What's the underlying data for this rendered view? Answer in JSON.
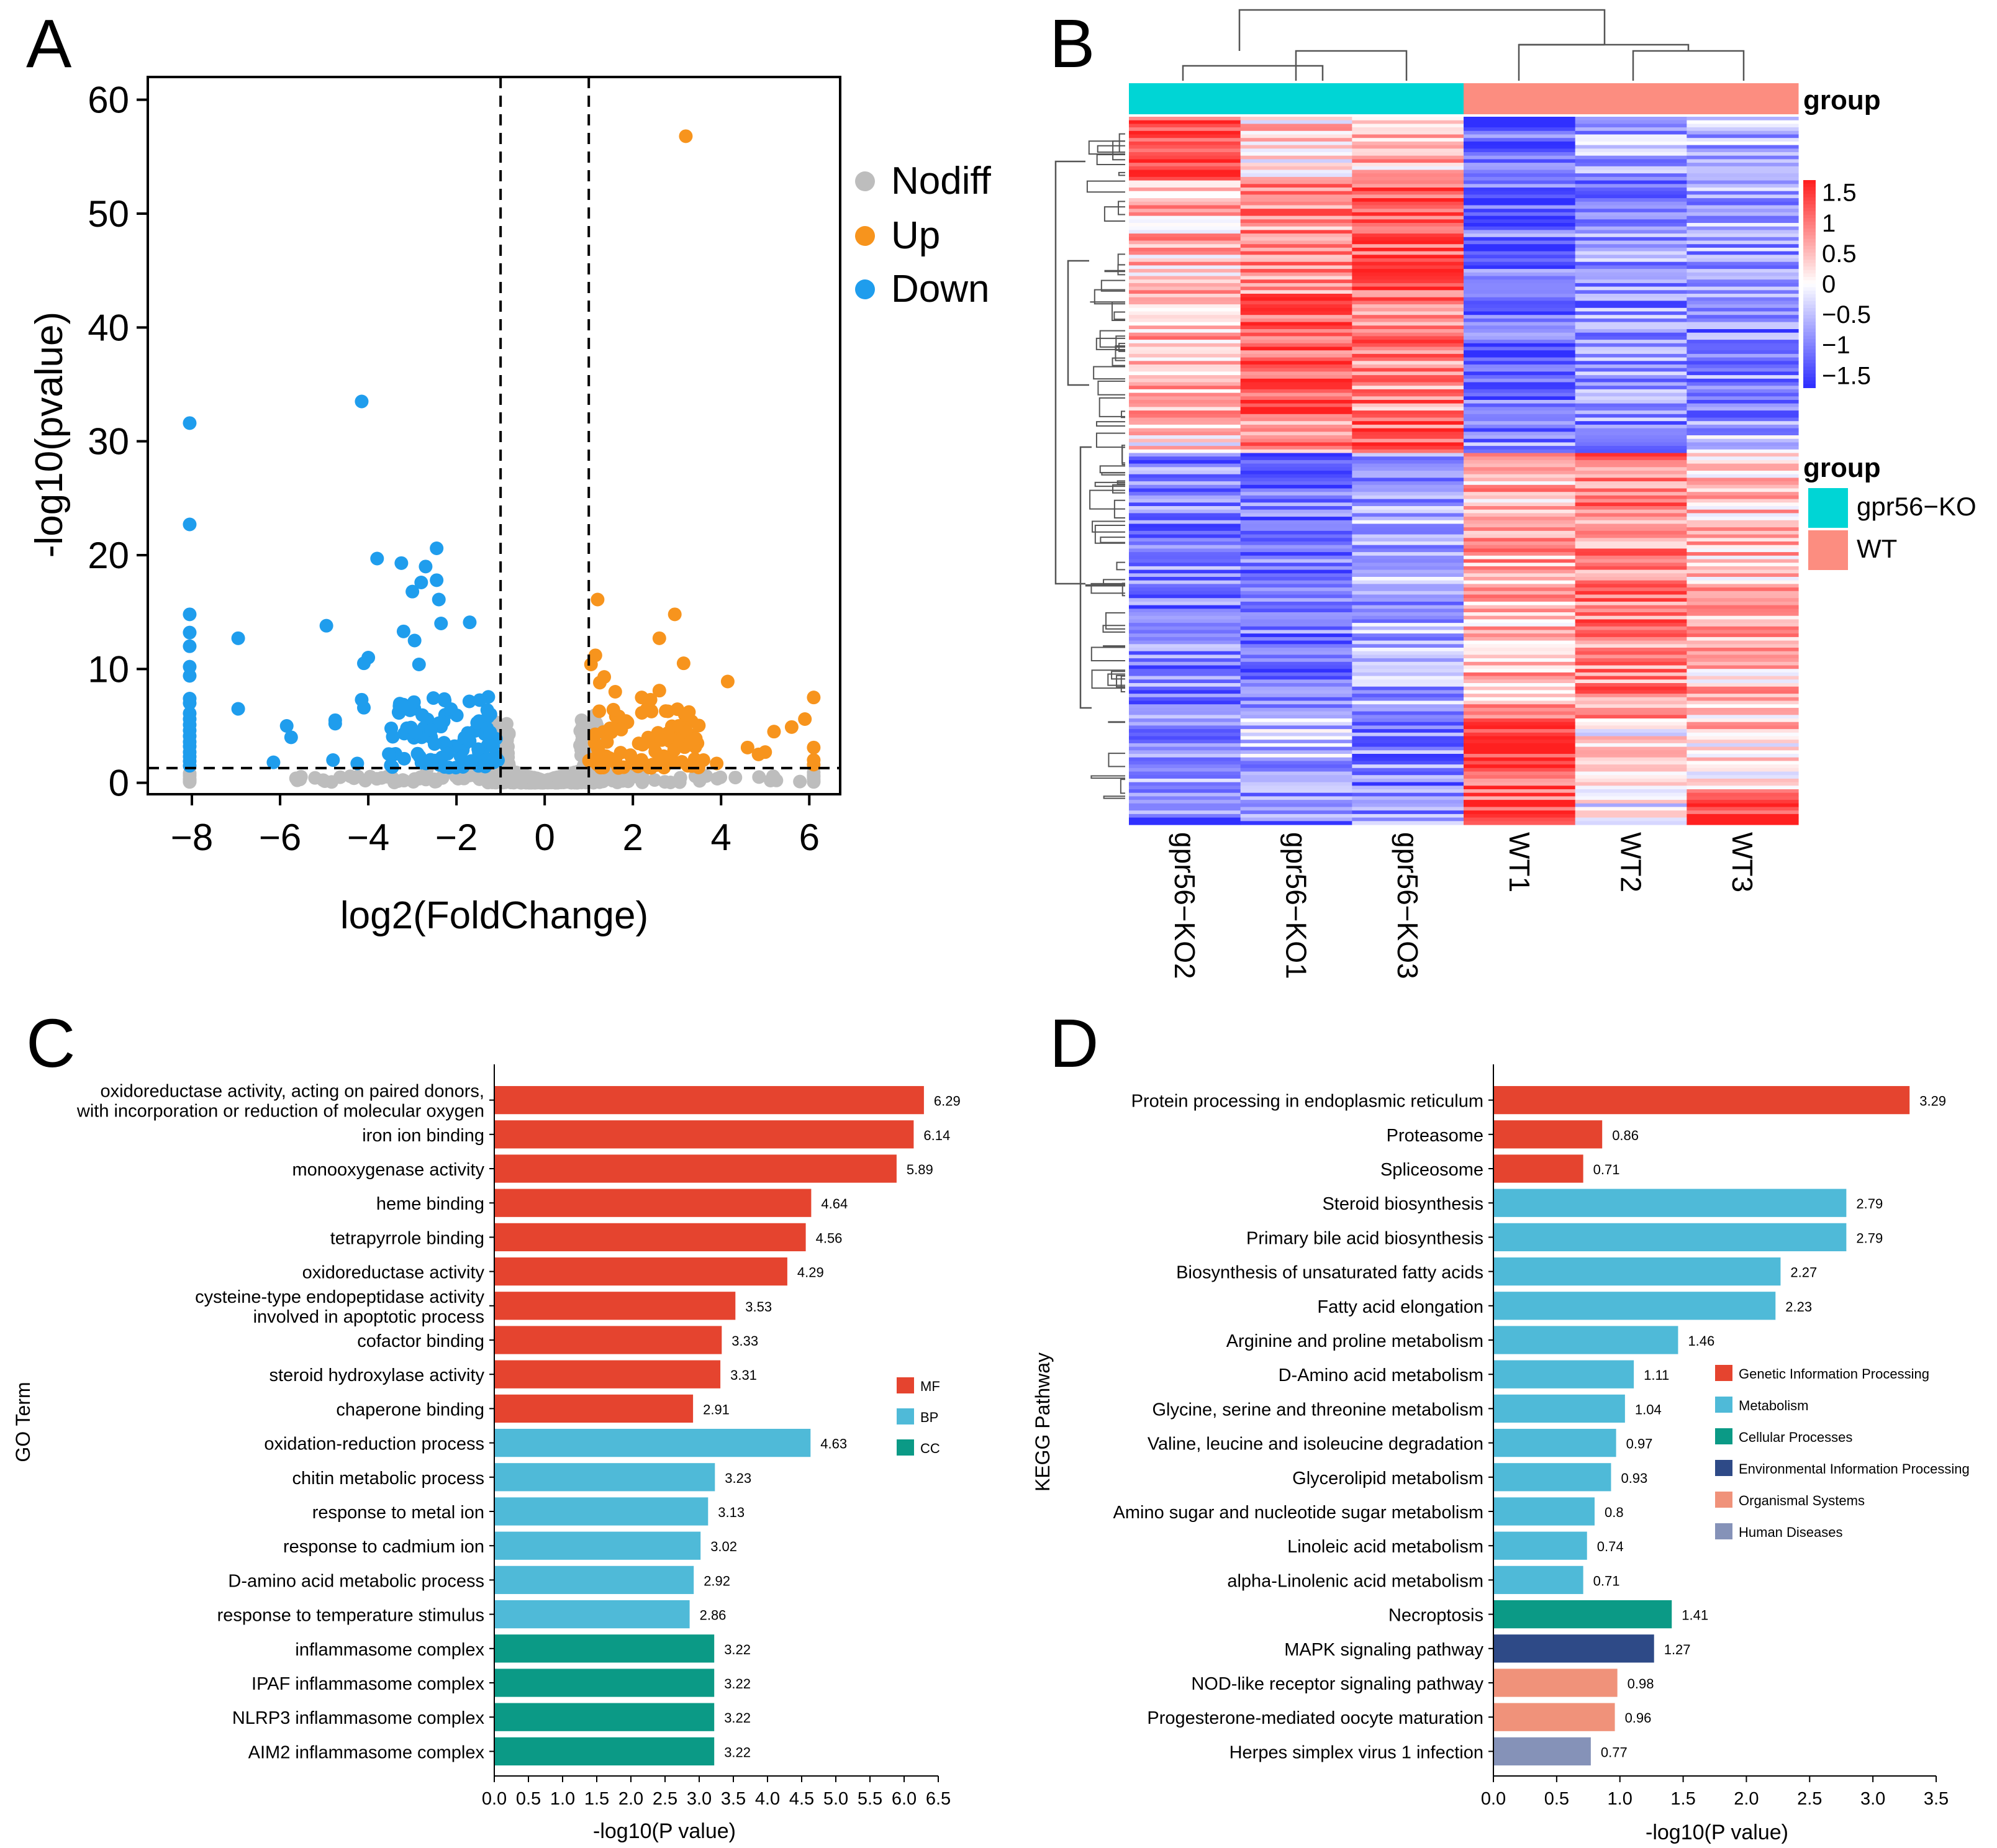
{
  "panels": {
    "a": "A",
    "b": "B",
    "c": "C",
    "d": "D"
  },
  "colors": {
    "nodiff": "#bdbdbd",
    "up": "#f7941d",
    "down": "#1f9ded",
    "mf": "#e5442f",
    "bp": "#4fbad8",
    "cc": "#0b9a86",
    "gip": "#e5442f",
    "met": "#4fbad8",
    "cp": "#0b9a86",
    "eip": "#2e4a87",
    "os": "#f0927a",
    "hd": "#8592b8",
    "ko": "#00d5d5",
    "wt": "#fc8d80"
  },
  "chart_data": [
    {
      "id": "volcano",
      "type": "scatter",
      "xlabel": "log2(FoldChange)",
      "ylabel": "-log10(pvalue)",
      "xlim": [
        -9,
        6.7
      ],
      "ylim": [
        -1,
        62
      ],
      "xticks": [
        -8,
        -6,
        -4,
        -2,
        0,
        2,
        4,
        6
      ],
      "yticks": [
        0,
        10,
        20,
        30,
        40,
        50,
        60
      ],
      "vlines": [
        -1,
        1
      ],
      "hline": 1.3,
      "legend": [
        "Nodiff",
        "Up",
        "Down"
      ],
      "up_points": [
        [
          3.2,
          56.8
        ],
        [
          1.2,
          16.1
        ],
        [
          2.95,
          14.8
        ],
        [
          2.6,
          12.7
        ],
        [
          3.15,
          10.5
        ],
        [
          1.15,
          11.2
        ],
        [
          1.05,
          10.4
        ],
        [
          1.35,
          9.3
        ],
        [
          1.25,
          8.8
        ],
        [
          1.6,
          8.0
        ],
        [
          2.2,
          7.5
        ],
        [
          2.6,
          8.1
        ],
        [
          2.4,
          7.3
        ],
        [
          4.15,
          8.9
        ],
        [
          5.9,
          5.6
        ],
        [
          6.1,
          7.5
        ],
        [
          5.2,
          4.5
        ],
        [
          5.6,
          4.9
        ],
        [
          4.6,
          3.1
        ],
        [
          5.0,
          2.7
        ],
        [
          4.85,
          2.5
        ],
        [
          6.1,
          3.1
        ],
        [
          6.1,
          2.0
        ],
        [
          6.1,
          1.6
        ],
        [
          3.6,
          2.0
        ],
        [
          3.9,
          1.7
        ]
      ],
      "up_cluster": {
        "x": [
          1.0,
          3.5
        ],
        "y": [
          1.3,
          6.5
        ],
        "n": 95
      },
      "down_points": [
        [
          -8.05,
          31.6
        ],
        [
          -8.05,
          22.7
        ],
        [
          -8.05,
          14.8
        ],
        [
          -8.05,
          13.2
        ],
        [
          -8.05,
          12.0
        ],
        [
          -8.05,
          10.2
        ],
        [
          -8.05,
          9.4
        ],
        [
          -8.05,
          7.4
        ],
        [
          -8.05,
          7.0
        ],
        [
          -8.05,
          6.1
        ],
        [
          -8.05,
          5.6
        ],
        [
          -8.05,
          5.1
        ],
        [
          -8.05,
          4.6
        ],
        [
          -8.05,
          4.1
        ],
        [
          -8.05,
          3.6
        ],
        [
          -8.05,
          3.2
        ],
        [
          -8.05,
          2.7
        ],
        [
          -8.05,
          2.3
        ],
        [
          -8.05,
          1.9
        ],
        [
          -8.05,
          1.5
        ],
        [
          -4.15,
          33.5
        ],
        [
          -3.8,
          19.7
        ],
        [
          -3.25,
          19.3
        ],
        [
          -2.45,
          20.6
        ],
        [
          -2.7,
          19.0
        ],
        [
          -2.45,
          17.8
        ],
        [
          -2.8,
          17.6
        ],
        [
          -2.4,
          16.1
        ],
        [
          -3.0,
          16.8
        ],
        [
          -1.7,
          14.1
        ],
        [
          -2.35,
          14.0
        ],
        [
          -3.2,
          13.3
        ],
        [
          -4.95,
          13.8
        ],
        [
          -6.95,
          12.7
        ],
        [
          -2.95,
          12.5
        ],
        [
          -4.0,
          11.0
        ],
        [
          -4.1,
          10.5
        ],
        [
          -2.85,
          10.4
        ],
        [
          -6.95,
          6.5
        ],
        [
          -5.85,
          5.0
        ],
        [
          -5.75,
          4.0
        ],
        [
          -4.75,
          5.5
        ],
        [
          -4.75,
          5.2
        ],
        [
          -4.1,
          6.6
        ],
        [
          -4.15,
          7.3
        ],
        [
          -6.15,
          1.8
        ],
        [
          -4.8,
          2.0
        ],
        [
          -4.25,
          1.7
        ]
      ],
      "down_cluster": {
        "x": [
          -3.6,
          -1.05
        ],
        "y": [
          1.3,
          7.6
        ],
        "n": 90
      },
      "nodiff_cluster": {
        "x": [
          -1.3,
          1.3
        ],
        "y": [
          0,
          1.5
        ],
        "n": 900
      }
    },
    {
      "id": "heatmap",
      "type": "heatmap",
      "columns": [
        "gpr56−KO2",
        "gpr56−KO1",
        "gpr56−KO3",
        "WT1",
        "WT2",
        "WT3"
      ],
      "column_groups": [
        "gpr56−KO",
        "gpr56−KO",
        "gpr56−KO",
        "WT",
        "WT",
        "WT"
      ],
      "annotation_label": "group",
      "scale_ticks": [
        "1.5",
        "1",
        "0.5",
        "0",
        "−0.5",
        "−1",
        "−1.5"
      ],
      "scale_range": [
        -1.7,
        1.7
      ],
      "legend_title": "group",
      "legend": [
        "gpr56−KO",
        "WT"
      ],
      "rows": 200
    },
    {
      "id": "go",
      "type": "bar",
      "orientation": "horizontal",
      "xlabel": "-log10(P value)",
      "ylabel": "GO Term",
      "xlim": [
        0,
        6.5
      ],
      "xticks": [
        "0.0",
        "0.5",
        "1.0",
        "1.5",
        "2.0",
        "2.5",
        "3.0",
        "3.5",
        "4.0",
        "4.5",
        "5.0",
        "5.5",
        "6.0",
        "6.5"
      ],
      "legend": [
        "MF",
        "BP",
        "CC"
      ],
      "categories": [
        [
          "oxidoreductase activity, acting on paired donors,",
          "with incorporation or reduction of molecular oxygen"
        ],
        [
          "iron ion binding"
        ],
        [
          "monooxygenase activity"
        ],
        [
          "heme binding"
        ],
        [
          "tetrapyrrole binding"
        ],
        [
          "oxidoreductase activity"
        ],
        [
          "cysteine-type endopeptidase activity",
          "involved in apoptotic process"
        ],
        [
          "cofactor binding"
        ],
        [
          "steroid hydroxylase activity"
        ],
        [
          "chaperone binding"
        ],
        [
          "oxidation-reduction process"
        ],
        [
          "chitin metabolic process"
        ],
        [
          "response to metal ion"
        ],
        [
          "response to cadmium ion"
        ],
        [
          "D-amino acid metabolic process"
        ],
        [
          "response to temperature stimulus"
        ],
        [
          "inflammasome complex"
        ],
        [
          "IPAF inflammasome complex"
        ],
        [
          "NLRP3 inflammasome complex"
        ],
        [
          "AIM2 inflammasome complex"
        ]
      ],
      "values": [
        6.29,
        6.14,
        5.89,
        4.64,
        4.56,
        4.29,
        3.53,
        3.33,
        3.31,
        2.91,
        4.63,
        3.23,
        3.13,
        3.02,
        2.92,
        2.86,
        3.22,
        3.22,
        3.22,
        3.22
      ],
      "labels": [
        "6.29",
        "6.14",
        "5.89",
        "4.64",
        "4.56",
        "4.29",
        "3.53",
        "3.33",
        "3.31",
        "2.91",
        "4.63",
        "3.23",
        "3.13",
        "3.02",
        "2.92",
        "2.86",
        "3.22",
        "3.22",
        "3.22",
        "3.22"
      ],
      "groups": [
        "mf",
        "mf",
        "mf",
        "mf",
        "mf",
        "mf",
        "mf",
        "mf",
        "mf",
        "mf",
        "bp",
        "bp",
        "bp",
        "bp",
        "bp",
        "bp",
        "cc",
        "cc",
        "cc",
        "cc"
      ]
    },
    {
      "id": "kegg",
      "type": "bar",
      "orientation": "horizontal",
      "xlabel": "-log10(P value)",
      "ylabel": "KEGG Pathway",
      "xlim": [
        0,
        3.5
      ],
      "xticks": [
        "0.0",
        "0.5",
        "1.0",
        "1.5",
        "2.0",
        "2.5",
        "3.0",
        "3.5"
      ],
      "legend": [
        "Genetic Information Processing",
        "Metabolism",
        "Cellular Processes",
        "Environmental Information Processing",
        "Organismal Systems",
        "Human Diseases"
      ],
      "categories": [
        "Protein processing in endoplasmic reticulum",
        "Proteasome",
        "Spliceosome",
        "Steroid biosynthesis",
        "Primary bile acid biosynthesis",
        "Biosynthesis of unsaturated fatty acids",
        "Fatty acid elongation",
        "Arginine and proline metabolism",
        "D-Amino acid metabolism",
        "Glycine, serine and threonine metabolism",
        "Valine, leucine and isoleucine degradation",
        "Glycerolipid metabolism",
        "Amino sugar and nucleotide sugar metabolism",
        "Linoleic acid metabolism",
        "alpha-Linolenic acid metabolism",
        "Necroptosis",
        "MAPK signaling pathway",
        "NOD-like receptor signaling pathway",
        "Progesterone-mediated oocyte maturation",
        "Herpes simplex virus 1 infection"
      ],
      "values": [
        3.29,
        0.86,
        0.71,
        2.79,
        2.79,
        2.27,
        2.23,
        1.46,
        1.11,
        1.04,
        0.97,
        0.93,
        0.8,
        0.74,
        0.71,
        1.41,
        1.27,
        0.98,
        0.96,
        0.77
      ],
      "labels": [
        "3.29",
        "0.86",
        "0.71",
        "2.79",
        "2.79",
        "2.27",
        "2.23",
        "1.46",
        "1.11",
        "1.04",
        "0.97",
        "0.93",
        "0.8",
        "0.74",
        "0.71",
        "1.41",
        "1.27",
        "0.98",
        "0.96",
        "0.77"
      ],
      "groups": [
        "gip",
        "gip",
        "gip",
        "met",
        "met",
        "met",
        "met",
        "met",
        "met",
        "met",
        "met",
        "met",
        "met",
        "met",
        "met",
        "cp",
        "eip",
        "os",
        "os",
        "hd"
      ]
    }
  ]
}
